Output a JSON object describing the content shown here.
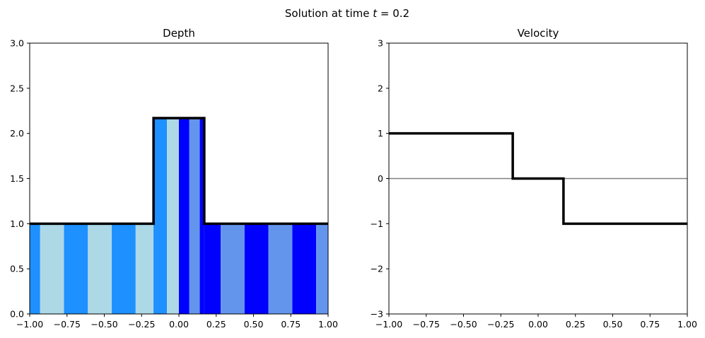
{
  "figure": {
    "suptitle_prefix": "Solution at time ",
    "suptitle_var": "t",
    "suptitle_eq": " = 0.2"
  },
  "chart_data": [
    {
      "type": "line",
      "title": "Depth",
      "xlim": [
        -1.0,
        1.0
      ],
      "ylim": [
        0.0,
        3.0
      ],
      "xticks": [
        -1.0,
        -0.75,
        -0.5,
        -0.25,
        0.0,
        0.25,
        0.5,
        0.75,
        1.0
      ],
      "xtick_labels": [
        "−1.00",
        "−0.75",
        "−0.50",
        "−0.25",
        "0.00",
        "0.25",
        "0.50",
        "0.75",
        "1.00"
      ],
      "yticks": [
        0.0,
        0.5,
        1.0,
        1.5,
        2.0,
        2.5,
        3.0
      ],
      "ytick_labels": [
        "0.0",
        "0.5",
        "1.0",
        "1.5",
        "2.0",
        "2.5",
        "3.0"
      ],
      "colors": {
        "dodgerblue": "#1e90ff",
        "lightblue": "#add8e6",
        "blue": "#0000ff",
        "cornflowerblue": "#6495ed",
        "line": "#000000"
      },
      "stripes": [
        {
          "x0": -1.0,
          "x1": -0.93,
          "top": 1.0,
          "color": "#1e90ff"
        },
        {
          "x0": -0.93,
          "x1": -0.77,
          "top": 1.0,
          "color": "#add8e6"
        },
        {
          "x0": -0.77,
          "x1": -0.61,
          "top": 1.0,
          "color": "#1e90ff"
        },
        {
          "x0": -0.61,
          "x1": -0.45,
          "top": 1.0,
          "color": "#add8e6"
        },
        {
          "x0": -0.45,
          "x1": -0.29,
          "top": 1.0,
          "color": "#1e90ff"
        },
        {
          "x0": -0.29,
          "x1": -0.15,
          "top": 1.0,
          "color": "#add8e6"
        },
        {
          "x0": -0.15,
          "x1": -0.17,
          "top": 1.0,
          "color": "#add8e6"
        },
        {
          "x0": -0.17,
          "x1": -0.08,
          "top": 2.17,
          "color": "#1e90ff"
        },
        {
          "x0": -0.08,
          "x1": 0.0,
          "top": 2.17,
          "color": "#add8e6"
        },
        {
          "x0": 0.0,
          "x1": 0.07,
          "top": 2.17,
          "color": "#0000ff"
        },
        {
          "x0": 0.07,
          "x1": 0.14,
          "top": 2.17,
          "color": "#6495ed"
        },
        {
          "x0": 0.14,
          "x1": 0.17,
          "top": 2.17,
          "color": "#0000ff"
        },
        {
          "x0": 0.17,
          "x1": 0.28,
          "top": 1.0,
          "color": "#0000ff"
        },
        {
          "x0": 0.28,
          "x1": 0.44,
          "top": 1.0,
          "color": "#6495ed"
        },
        {
          "x0": 0.44,
          "x1": 0.6,
          "top": 1.0,
          "color": "#0000ff"
        },
        {
          "x0": 0.6,
          "x1": 0.76,
          "top": 1.0,
          "color": "#6495ed"
        },
        {
          "x0": 0.76,
          "x1": 0.92,
          "top": 1.0,
          "color": "#0000ff"
        },
        {
          "x0": 0.92,
          "x1": 1.0,
          "top": 1.0,
          "color": "#6495ed"
        }
      ],
      "series": [
        {
          "x": [
            -1.0,
            -0.17,
            -0.17,
            0.17,
            0.17,
            1.0
          ],
          "y": [
            1.0,
            1.0,
            2.17,
            2.17,
            1.0,
            1.0
          ],
          "color": "#000000"
        }
      ]
    },
    {
      "type": "line",
      "title": "Velocity",
      "xlim": [
        -1.0,
        1.0
      ],
      "ylim": [
        -3.0,
        3.0
      ],
      "xticks": [
        -1.0,
        -0.75,
        -0.5,
        -0.25,
        0.0,
        0.25,
        0.5,
        0.75,
        1.0
      ],
      "xtick_labels": [
        "−1.00",
        "−0.75",
        "−0.50",
        "−0.25",
        "0.00",
        "0.25",
        "0.50",
        "0.75",
        "1.00"
      ],
      "yticks": [
        -3,
        -2,
        -1,
        0,
        1,
        2,
        3
      ],
      "ytick_labels": [
        "−3",
        "−2",
        "−1",
        "0",
        "1",
        "2",
        "3"
      ],
      "colors": {
        "zero_line": "#808080",
        "line": "#000000"
      },
      "hlines": [
        {
          "y": 0,
          "color": "#808080"
        }
      ],
      "series": [
        {
          "x": [
            -1.0,
            -0.17,
            -0.17,
            0.17,
            0.17,
            1.0
          ],
          "y": [
            1.0,
            1.0,
            0.0,
            0.0,
            -1.0,
            -1.0
          ],
          "color": "#000000"
        }
      ]
    }
  ]
}
